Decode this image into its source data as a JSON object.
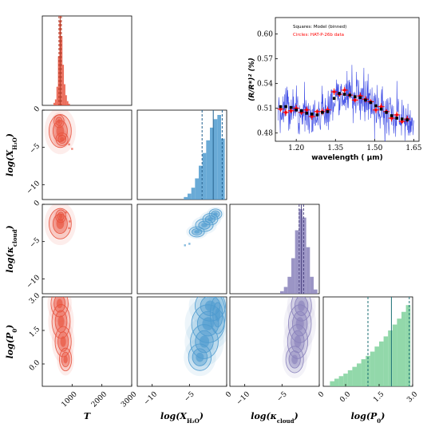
{
  "chart_data": [
    {
      "type": "histogram",
      "panel": "T",
      "color": "#e8533e",
      "x_range": [
        0,
        3000
      ],
      "bins": [
        {
          "x": 400,
          "h": 0.03
        },
        {
          "x": 450,
          "h": 0.07
        },
        {
          "x": 500,
          "h": 0.22
        },
        {
          "x": 550,
          "h": 0.58
        },
        {
          "x": 600,
          "h": 1.0
        },
        {
          "x": 650,
          "h": 0.82
        },
        {
          "x": 700,
          "h": 0.48
        },
        {
          "x": 750,
          "h": 0.25
        },
        {
          "x": 800,
          "h": 0.12
        },
        {
          "x": 850,
          "h": 0.05
        },
        {
          "x": 900,
          "h": 0.02
        }
      ],
      "lines": [
        560,
        600,
        640
      ]
    },
    {
      "type": "histogram",
      "panel": "log(X_H2O)",
      "color": "#4f9bcf",
      "x_range": [
        -12,
        0
      ],
      "bins": [
        {
          "x": -5.5,
          "h": 0.03
        },
        {
          "x": -5.0,
          "h": 0.07
        },
        {
          "x": -4.5,
          "h": 0.14
        },
        {
          "x": -4.0,
          "h": 0.25
        },
        {
          "x": -3.5,
          "h": 0.4
        },
        {
          "x": -3.0,
          "h": 0.55
        },
        {
          "x": -2.5,
          "h": 0.7
        },
        {
          "x": -2.0,
          "h": 0.85
        },
        {
          "x": -1.5,
          "h": 0.95
        },
        {
          "x": -1.0,
          "h": 1.0
        },
        {
          "x": -0.5,
          "h": 0.72
        }
      ],
      "lines": [
        -3.3,
        -1.8,
        -0.6
      ]
    },
    {
      "type": "histogram",
      "panel": "log(kappa_cloud)",
      "color": "#8a82bb",
      "x_range": [
        -12,
        0
      ],
      "bins": [
        {
          "x": -5.0,
          "h": 0.03
        },
        {
          "x": -4.5,
          "h": 0.08
        },
        {
          "x": -4.0,
          "h": 0.2
        },
        {
          "x": -3.5,
          "h": 0.42
        },
        {
          "x": -3.0,
          "h": 0.75
        },
        {
          "x": -2.5,
          "h": 1.0
        },
        {
          "x": -2.0,
          "h": 0.9
        },
        {
          "x": -1.5,
          "h": 0.55
        },
        {
          "x": -1.0,
          "h": 0.2
        },
        {
          "x": -0.5,
          "h": 0.05
        }
      ],
      "lines": [
        -2.7,
        -2.4,
        -2.1
      ]
    },
    {
      "type": "histogram",
      "panel": "log(P0)",
      "color": "#7fd19b",
      "x_range": [
        -1,
        3
      ],
      "bins": [
        {
          "x": -0.6,
          "h": 0.06
        },
        {
          "x": -0.4,
          "h": 0.09
        },
        {
          "x": -0.2,
          "h": 0.12
        },
        {
          "x": 0.0,
          "h": 0.15
        },
        {
          "x": 0.2,
          "h": 0.19
        },
        {
          "x": 0.4,
          "h": 0.23
        },
        {
          "x": 0.6,
          "h": 0.27
        },
        {
          "x": 0.8,
          "h": 0.32
        },
        {
          "x": 1.0,
          "h": 0.36
        },
        {
          "x": 1.2,
          "h": 0.41
        },
        {
          "x": 1.4,
          "h": 0.47
        },
        {
          "x": 1.6,
          "h": 0.53
        },
        {
          "x": 1.8,
          "h": 0.59
        },
        {
          "x": 2.0,
          "h": 0.66
        },
        {
          "x": 2.2,
          "h": 0.73
        },
        {
          "x": 2.4,
          "h": 0.8
        },
        {
          "x": 2.6,
          "h": 0.88
        },
        {
          "x": 2.8,
          "h": 0.96
        }
      ],
      "lines": [
        1.0,
        2.05,
        2.85
      ]
    },
    {
      "type": "contour",
      "x_param": "T",
      "y_param": "log(X_H2O)",
      "x_range": [
        0,
        3000
      ],
      "y_range": [
        -12,
        0
      ],
      "blobs": [
        {
          "cx": 600,
          "cy": -2.8,
          "sx": 220,
          "sy": 1.3
        },
        {
          "cx": 560,
          "cy": -1.5,
          "sx": 100,
          "sy": 0.5
        },
        {
          "cx": 660,
          "cy": -3.9,
          "sx": 120,
          "sy": 0.5
        }
      ],
      "points": [
        {
          "x": 1000,
          "y": -5.2
        },
        {
          "x": 900,
          "y": -4.6
        }
      ]
    },
    {
      "type": "contour",
      "x_param": "T",
      "y_param": "log(kappa_cloud)",
      "x_range": [
        0,
        3000
      ],
      "y_range": [
        -12,
        0
      ],
      "blobs": [
        {
          "cx": 600,
          "cy": -2.6,
          "sx": 220,
          "sy": 1.2
        },
        {
          "cx": 620,
          "cy": -1.6,
          "sx": 100,
          "sy": 0.5
        }
      ],
      "points": [
        {
          "x": 920,
          "y": -2.3
        },
        {
          "x": 900,
          "y": -3.2
        },
        {
          "x": 790,
          "y": -1.1
        }
      ]
    },
    {
      "type": "contour",
      "x_param": "log(X_H2O)",
      "y_param": "log(kappa_cloud)",
      "x_range": [
        -12,
        0
      ],
      "y_range": [
        -12,
        0
      ],
      "correlated": true,
      "blobs": [
        {
          "cx": -2.2,
          "cy": -2.0,
          "sx": 0.6,
          "sy": 0.45
        },
        {
          "cx": -3.0,
          "cy": -2.8,
          "sx": 0.7,
          "sy": 0.5
        },
        {
          "cx": -4.0,
          "cy": -3.7,
          "sx": 0.6,
          "sy": 0.4
        },
        {
          "cx": -1.5,
          "cy": -1.3,
          "sx": 0.5,
          "sy": 0.4
        }
      ],
      "points": [
        {
          "x": -5.6,
          "y": -5.5
        },
        {
          "x": -5.0,
          "y": -5.3
        }
      ]
    },
    {
      "type": "contour",
      "x_param": "T",
      "y_param": "log(P0)",
      "x_range": [
        0,
        3000
      ],
      "y_range": [
        -1,
        3
      ],
      "blobs": [
        {
          "cx": 580,
          "cy": 2.7,
          "sx": 170,
          "sy": 0.35
        },
        {
          "cx": 630,
          "cy": 1.9,
          "sx": 180,
          "sy": 0.45
        },
        {
          "cx": 700,
          "cy": 1.0,
          "sx": 160,
          "sy": 0.4
        },
        {
          "cx": 780,
          "cy": 0.2,
          "sx": 120,
          "sy": 0.3
        }
      ],
      "points": []
    },
    {
      "type": "contour",
      "x_param": "log(X_H2O)",
      "y_param": "log(P0)",
      "x_range": [
        -12,
        0
      ],
      "y_range": [
        -1,
        3
      ],
      "blobs": [
        {
          "cx": -2.2,
          "cy": 2.6,
          "sx": 1.2,
          "sy": 0.4
        },
        {
          "cx": -2.5,
          "cy": 1.8,
          "sx": 1.3,
          "sy": 0.5
        },
        {
          "cx": -3.0,
          "cy": 1.0,
          "sx": 1.1,
          "sy": 0.45
        },
        {
          "cx": -3.6,
          "cy": 0.3,
          "sx": 0.9,
          "sy": 0.35
        },
        {
          "cx": -1.2,
          "cy": 2.2,
          "sx": 0.6,
          "sy": 0.5
        }
      ],
      "points": []
    },
    {
      "type": "contour",
      "x_param": "log(kappa_cloud)",
      "y_param": "log(P0)",
      "x_range": [
        -12,
        0
      ],
      "y_range": [
        -1,
        3
      ],
      "blobs": [
        {
          "cx": -2.4,
          "cy": 2.6,
          "sx": 0.8,
          "sy": 0.4
        },
        {
          "cx": -2.6,
          "cy": 1.8,
          "sx": 0.9,
          "sy": 0.5
        },
        {
          "cx": -2.9,
          "cy": 1.0,
          "sx": 0.8,
          "sy": 0.45
        },
        {
          "cx": -3.3,
          "cy": 0.2,
          "sx": 0.7,
          "sy": 0.35
        }
      ],
      "points": []
    },
    {
      "type": "line",
      "panel": "spectrum inset",
      "xlabel": "wavelength ( μm)",
      "ylabel": "(R/R*)² (%)",
      "x_range": [
        1.12,
        1.67
      ],
      "y_range": [
        0.47,
        0.62
      ],
      "x_ticks": [
        "1.20",
        "1.35",
        "1.50",
        "1.65"
      ],
      "y_ticks": [
        "0.48",
        "0.51",
        "0.54",
        "0.57",
        "0.60"
      ],
      "legend": [
        "Squares: Model (binned)",
        "Circles: HAT-P-26b data"
      ],
      "series": [
        {
          "name": "Squares: Model (binned)",
          "marker": "square",
          "color": "#000000",
          "x": [
            1.14,
            1.16,
            1.18,
            1.2,
            1.22,
            1.24,
            1.26,
            1.28,
            1.3,
            1.32,
            1.345,
            1.365,
            1.385,
            1.405,
            1.425,
            1.445,
            1.465,
            1.485,
            1.505,
            1.525,
            1.545,
            1.565,
            1.585,
            1.605,
            1.625
          ],
          "y": [
            0.512,
            0.512,
            0.511,
            0.508,
            0.507,
            0.504,
            0.503,
            0.502,
            0.505,
            0.506,
            0.522,
            0.528,
            0.527,
            0.526,
            0.524,
            0.523,
            0.52,
            0.517,
            0.513,
            0.509,
            0.505,
            0.501,
            0.498,
            0.497,
            0.496
          ]
        },
        {
          "name": "Circles: HAT-P-26b data",
          "marker": "circle",
          "color": "#ff0000",
          "x": [
            1.14,
            1.16,
            1.18,
            1.2,
            1.22,
            1.24,
            1.26,
            1.28,
            1.3,
            1.32,
            1.345,
            1.365,
            1.385,
            1.405,
            1.425,
            1.445,
            1.465,
            1.485,
            1.505,
            1.525,
            1.545,
            1.565,
            1.585,
            1.605,
            1.625
          ],
          "y": [
            0.509,
            0.505,
            0.507,
            0.51,
            0.505,
            0.508,
            0.5,
            0.506,
            0.506,
            0.508,
            0.53,
            0.527,
            0.532,
            0.526,
            0.52,
            0.525,
            0.521,
            0.518,
            0.508,
            0.512,
            0.506,
            0.498,
            0.502,
            0.494,
            0.497
          ],
          "err": [
            0.003,
            0.004,
            0.003,
            0.004,
            0.003,
            0.004,
            0.004,
            0.003,
            0.004,
            0.004,
            0.004,
            0.003,
            0.004,
            0.004,
            0.003,
            0.004,
            0.004,
            0.003,
            0.004,
            0.004,
            0.003,
            0.004,
            0.004,
            0.003,
            0.004
          ]
        }
      ]
    }
  ],
  "axes": {
    "x_labels": [
      "T",
      "log(X_{H₂O})",
      "log(κ_{cloud})",
      "log(P₀)"
    ],
    "y_labels": [
      "log(X_{H₂O})",
      "log(κ_{cloud})",
      "log(P₀)"
    ],
    "T_ticks": [
      "1000",
      "2000",
      "3000"
    ],
    "log_ticks": [
      "−10",
      "−5",
      "0"
    ],
    "logP_ticks": [
      "0.0",
      "1.5",
      "3.0"
    ],
    "logP_xticks": [
      "0.0",
      "1.5",
      "3.0"
    ],
    "row_yticks": [
      "0",
      "−5",
      "−10"
    ],
    "logP_yticks": [
      "3.0",
      "1.5",
      "0.0"
    ]
  },
  "label_parts": {
    "log": "log(",
    "close": ")",
    "X": "X",
    "H2O": "H₂O",
    "kappa": "κ",
    "cloud": "cloud",
    "P": "P",
    "zero": "0",
    "T": "T"
  }
}
